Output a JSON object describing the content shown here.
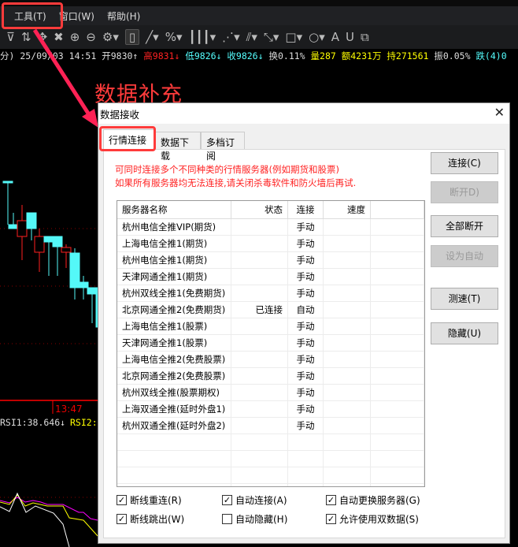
{
  "menu": [
    "工具(T)",
    "窗口(W)",
    "帮助(H)"
  ],
  "toolbar_icons": [
    "filter-icon",
    "sort-icon",
    "move-icon",
    "cross-icon",
    "zoom-in-icon",
    "zoom-out-icon",
    "gear-icon",
    "mouse-icon",
    "line-icon",
    "percent-line-icon",
    "vertical-lines-icon",
    "fan-icon",
    "parallel-icon",
    "fib-icon",
    "rectangle-icon",
    "circle-icon",
    "text-icon",
    "magnet-icon",
    "copy-icon"
  ],
  "info": {
    "time": "分) 25/09/03 14:51",
    "open": "开9830↑",
    "high": "高9831↓",
    "low": "低9826↓",
    "close": "收9826↓",
    "turnover": "换0.11%",
    "volume": "量287",
    "amount": "额4231万",
    "hold": "持271561",
    "amp": "振0.05%",
    "fall": "跌(4)0"
  },
  "chart": {
    "time_label": "13:47",
    "rsi1": "RSI1:38.646↓",
    "rsi2": "RSI2:"
  },
  "annotation": "数据补充",
  "dialog": {
    "title": "数据接收",
    "tabs": [
      "行情连接",
      "数据下载",
      "多档订阅"
    ],
    "msg1": "可同时连接多个不同种类的行情服务器(例如期货和股票)",
    "msg2": "如果所有服务器均无法连接,请关闭杀毒软件和防火墙后再试.",
    "columns": [
      "服务器名称",
      "状态",
      "连接",
      "速度"
    ],
    "rows": [
      [
        "杭州电信全推VIP(期货)",
        "",
        "手动",
        ""
      ],
      [
        "上海电信全推1(期货)",
        "",
        "手动",
        ""
      ],
      [
        "杭州电信全推1(期货)",
        "",
        "手动",
        ""
      ],
      [
        "天津网通全推1(期货)",
        "",
        "手动",
        ""
      ],
      [
        "杭州双线全推1(免费期货)",
        "",
        "手动",
        ""
      ],
      [
        "北京网通全推2(免费期货)",
        "已连接",
        "自动",
        ""
      ],
      [
        "上海电信全推1(股票)",
        "",
        "手动",
        ""
      ],
      [
        "天津网通全推1(股票)",
        "",
        "手动",
        ""
      ],
      [
        "上海电信全推2(免费股票)",
        "",
        "手动",
        ""
      ],
      [
        "北京网通全推2(免费股票)",
        "",
        "手动",
        ""
      ],
      [
        "杭州双线全推(股票期权)",
        "",
        "手动",
        ""
      ],
      [
        "上海双通全推(延时外盘1)",
        "",
        "手动",
        ""
      ],
      [
        "杭州双通全推(延时外盘2)",
        "",
        "手动",
        ""
      ]
    ],
    "buttons": [
      {
        "label": "连接(C)",
        "enabled": true
      },
      {
        "label": "断开D)",
        "enabled": false
      },
      {
        "label": "全部断开",
        "enabled": true
      },
      {
        "label": "设为自动",
        "enabled": false
      },
      {
        "label": "测速(T)",
        "enabled": true
      },
      {
        "label": "隐藏(U)",
        "enabled": true
      }
    ],
    "checkboxes": [
      {
        "label": "断线重连(R)",
        "checked": true
      },
      {
        "label": "自动连接(A)",
        "checked": true
      },
      {
        "label": "自动更换服务器(G)",
        "checked": true
      },
      {
        "label": "断线跳出(W)",
        "checked": true
      },
      {
        "label": "自动隐藏(H)",
        "checked": false
      },
      {
        "label": "允许使用双数据(S)",
        "checked": true
      }
    ]
  },
  "colors": {
    "annotation": "#ff3b3b",
    "up": "#ff2020",
    "down": "#54f8f8",
    "warning_text": "#ff2222"
  }
}
